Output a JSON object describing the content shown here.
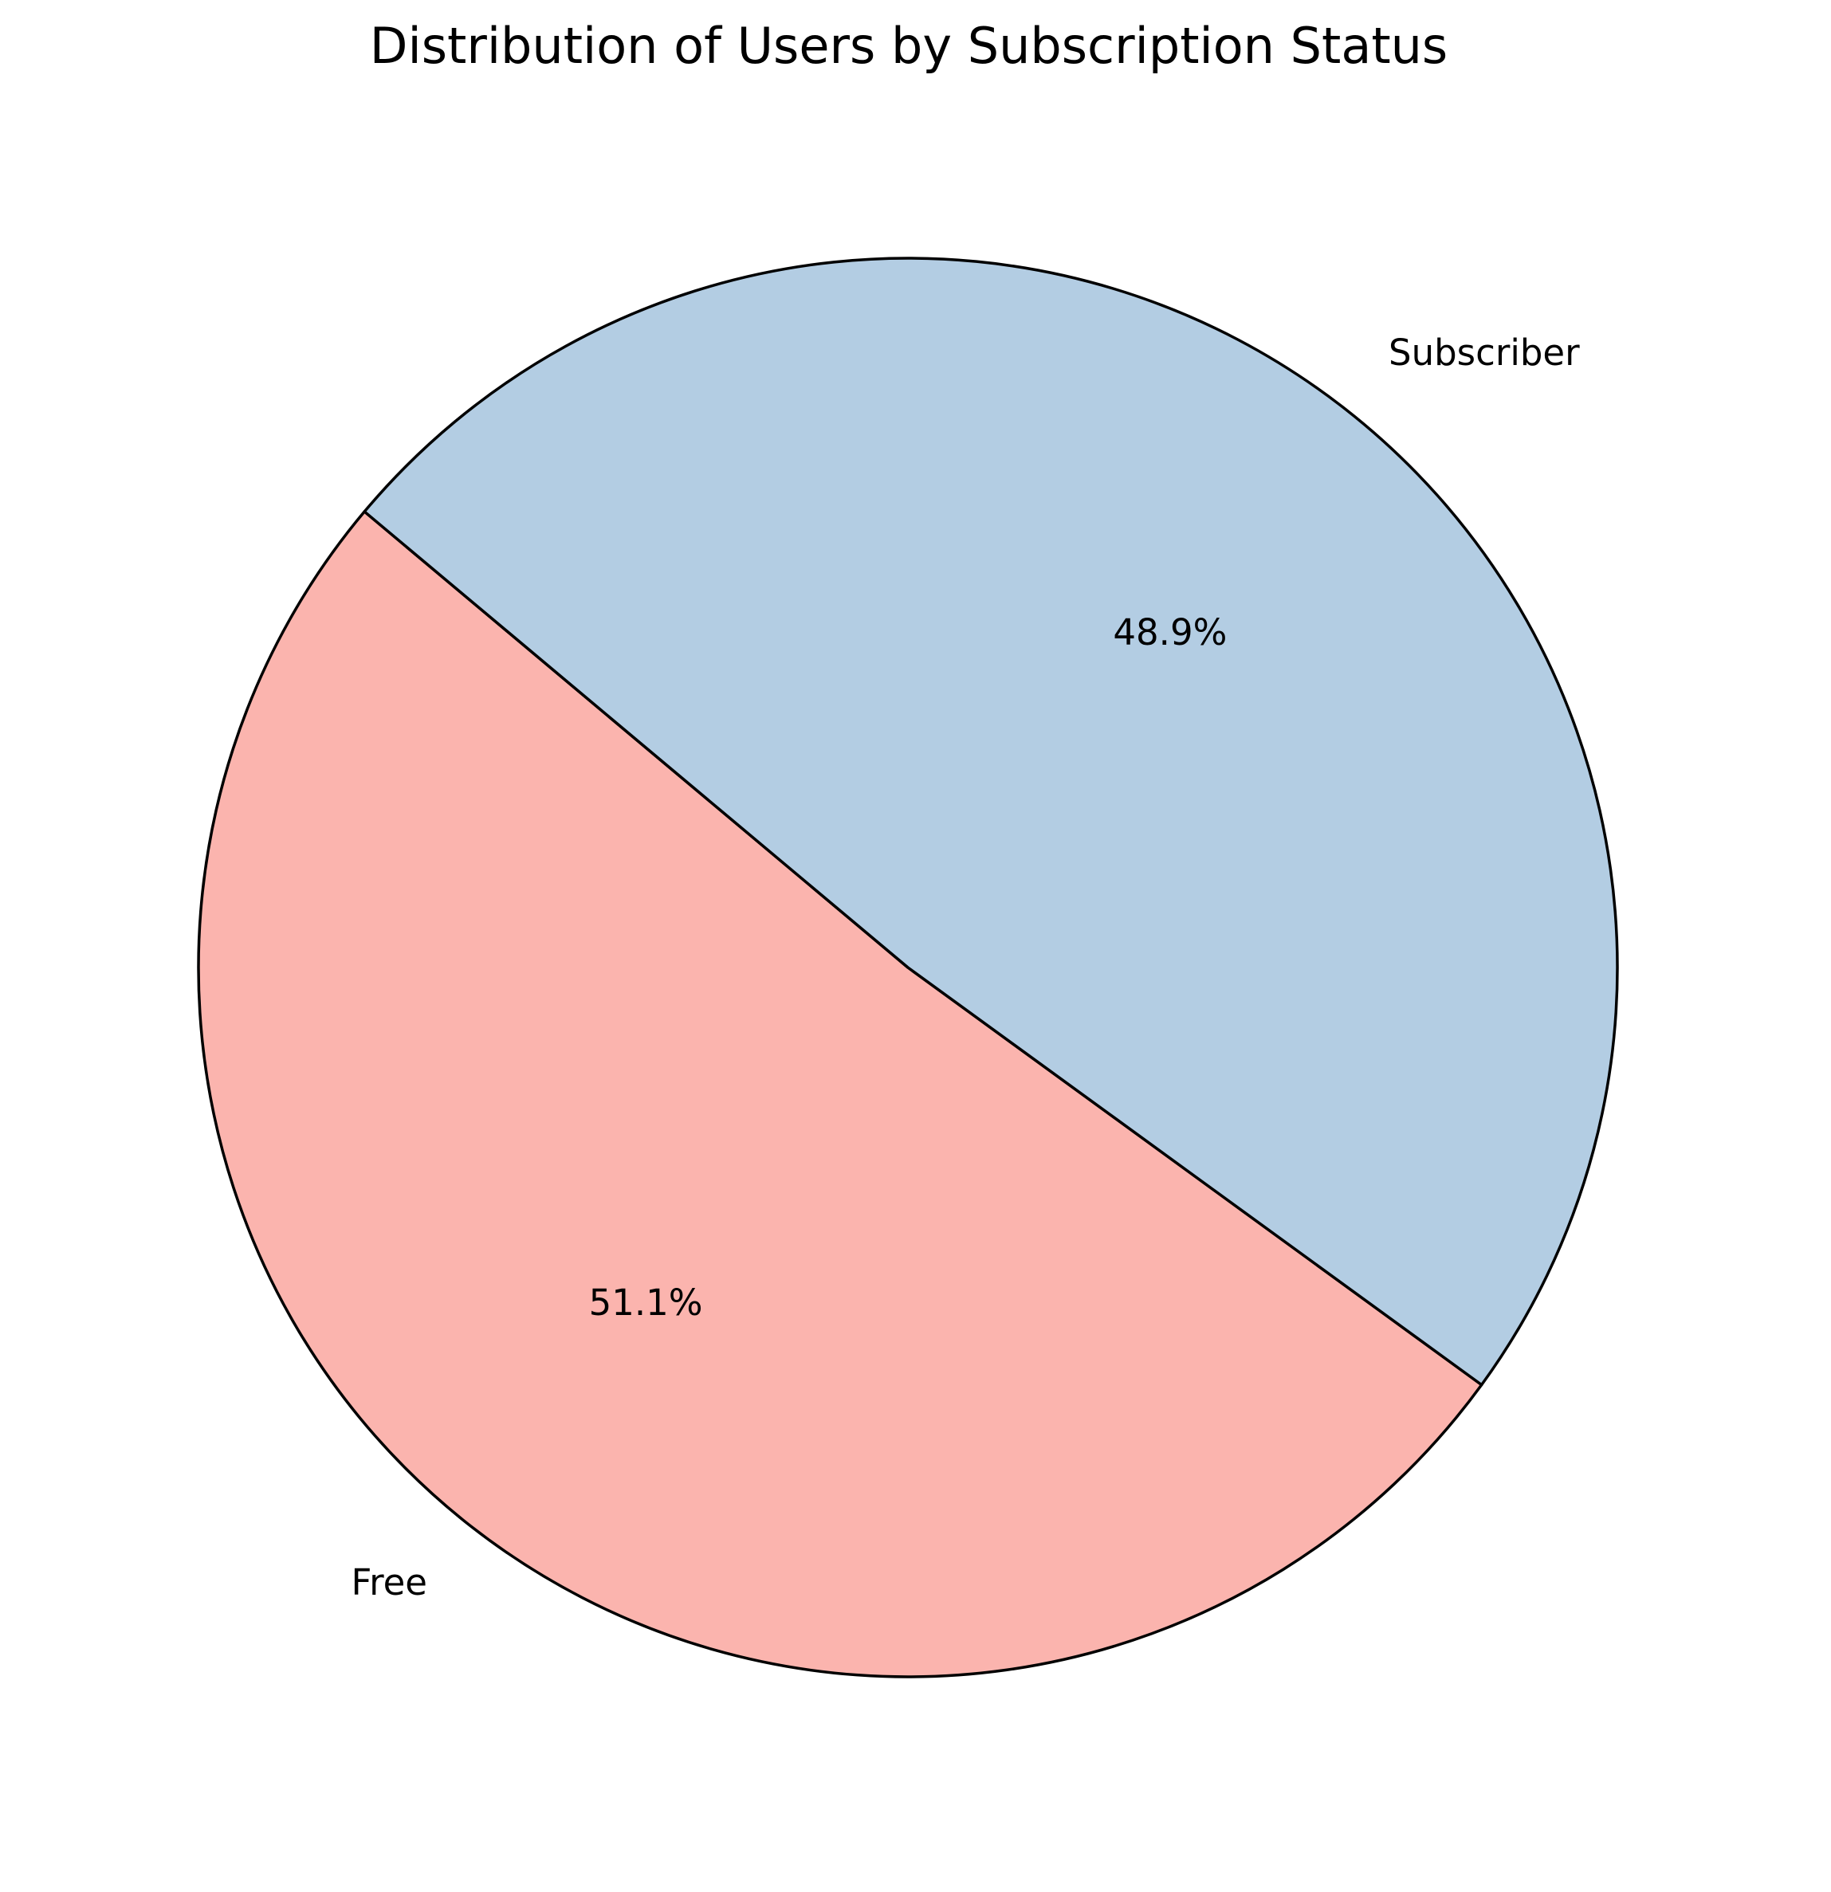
{
  "chart_data": {
    "type": "pie",
    "title": "Distribution of Users by Subscription Status",
    "start_angle": 140,
    "direction": "counterclockwise",
    "slices": [
      {
        "label": "Free",
        "value": 51.1,
        "pct_text": "51.1%",
        "color": "#fbb4ae"
      },
      {
        "label": "Subscriber",
        "value": 48.9,
        "pct_text": "48.9%",
        "color": "#b3cde3"
      }
    ],
    "edge_color": "#000000"
  }
}
